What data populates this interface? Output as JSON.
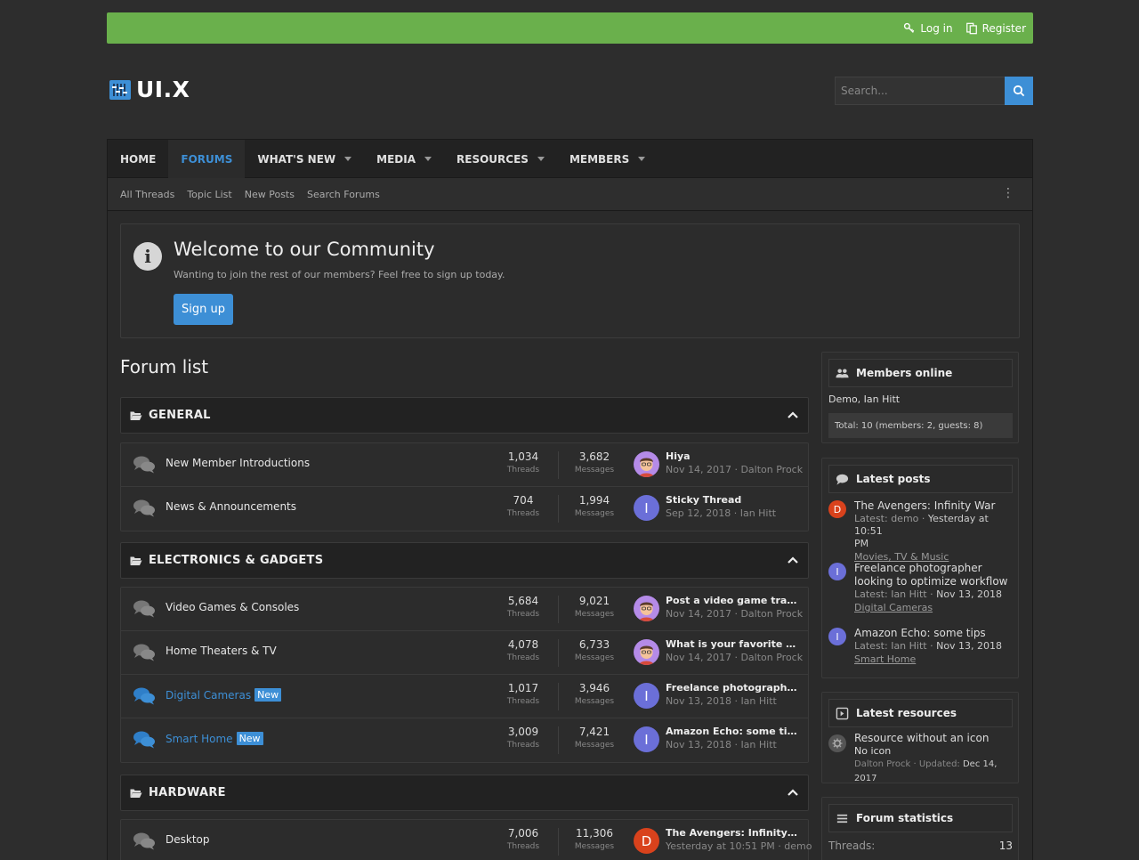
{
  "topbar": {
    "login": "Log in",
    "register": "Register"
  },
  "logo": {
    "text": "UI.X"
  },
  "search": {
    "placeholder": "Search..."
  },
  "nav": {
    "items": [
      {
        "label": "HOME"
      },
      {
        "label": "FORUMS"
      },
      {
        "label": "WHAT'S NEW"
      },
      {
        "label": "MEDIA"
      },
      {
        "label": "RESOURCES"
      },
      {
        "label": "MEMBERS"
      }
    ]
  },
  "subnav": {
    "items": [
      "All Threads",
      "Topic List",
      "New Posts",
      "Search Forums"
    ]
  },
  "notice": {
    "title": "Welcome to our Community",
    "text": "Wanting to join the rest of our members? Feel free to sign up today.",
    "button": "Sign up"
  },
  "forum_list": {
    "heading": "Forum list",
    "categories": [
      {
        "title": "GENERAL",
        "forums": [
          {
            "name": "New Member Introductions",
            "threads": "1,034",
            "threads_label": "Threads",
            "messages": "3,682",
            "messages_label": "Messages",
            "last_title": "Hiya",
            "last_meta": "Nov 14, 2017 · Dalton Prock"
          },
          {
            "name": "News & Announcements",
            "threads": "704",
            "threads_label": "Threads",
            "messages": "1,994",
            "messages_label": "Messages",
            "last_title": "Sticky Thread",
            "last_meta": "Sep 12, 2018 · Ian Hitt",
            "avatar_letter": "I"
          }
        ]
      },
      {
        "title": "ELECTRONICS & GADGETS",
        "forums": [
          {
            "name": "Video Games & Consoles",
            "threads": "5,684",
            "threads_label": "Threads",
            "messages": "9,021",
            "messages_label": "Messages",
            "last_title": "Post a video game trailer",
            "last_meta": "Nov 14, 2017 · Dalton Prock"
          },
          {
            "name": "Home Theaters & TV",
            "threads": "4,078",
            "threads_label": "Threads",
            "messages": "6,733",
            "messages_label": "Messages",
            "last_title": "What is your favorite TV?",
            "last_meta": "Nov 14, 2017 · Dalton Prock"
          },
          {
            "name": "Digital Cameras",
            "badge": "New",
            "threads": "1,017",
            "threads_label": "Threads",
            "messages": "3,946",
            "messages_label": "Messages",
            "last_title": "Freelance photographer lo...",
            "last_meta": "Nov 13, 2018 · Ian Hitt",
            "avatar_letter": "I"
          },
          {
            "name": "Smart Home",
            "badge": "New",
            "threads": "3,009",
            "threads_label": "Threads",
            "messages": "7,421",
            "messages_label": "Messages",
            "last_title": "Amazon Echo: some tips",
            "last_meta": "Nov 13, 2018 · Ian Hitt",
            "avatar_letter": "I"
          }
        ]
      },
      {
        "title": "HARDWARE",
        "forums": [
          {
            "name": "Desktop",
            "threads": "7,006",
            "threads_label": "Threads",
            "messages": "11,306",
            "messages_label": "Messages",
            "last_title": "The Avengers: Infinity War",
            "last_meta": "Yesterday at 10:51 PM · demo",
            "avatar_letter": "D"
          }
        ]
      }
    ]
  },
  "sidebar": {
    "members_online": {
      "title": "Members online",
      "list": "Demo, Ian Hitt",
      "total": "Total: 10 (members: 2, guests: 8)"
    },
    "latest_posts": {
      "title": "Latest posts",
      "items": [
        {
          "avatar": "D",
          "title": "The Avengers: Infinity War",
          "meta_prefix": "Latest: demo · ",
          "meta_time": "Yesterday at 10:51",
          "meta_time2": "PM",
          "forum": "Movies, TV & Music"
        },
        {
          "avatar": "I",
          "title": "Freelance photographer looking to optimize workflow",
          "meta_prefix": "Latest: Ian Hitt · ",
          "meta_time": "Nov 13, 2018",
          "forum": "Digital Cameras"
        },
        {
          "avatar": "I",
          "title": "Amazon Echo: some tips",
          "meta_prefix": "Latest: Ian Hitt · ",
          "meta_time": "Nov 13, 2018",
          "forum": "Smart Home"
        }
      ]
    },
    "latest_resources": {
      "title": "Latest resources",
      "item_title": "Resource without an icon",
      "item_sub": "No icon",
      "item_meta_prefix": "Dalton Prock · Updated: ",
      "item_meta_date": "Dec 14, 2017"
    },
    "forum_statistics": {
      "title": "Forum statistics",
      "threads_label": "Threads:",
      "threads_value": "13"
    }
  },
  "colors": {
    "accent": "#3d8fd6",
    "topbar": "#6ab04c",
    "background": "#2d2d2d",
    "avatar_d": "#d9421c",
    "avatar_i": "#6b6fd8"
  }
}
